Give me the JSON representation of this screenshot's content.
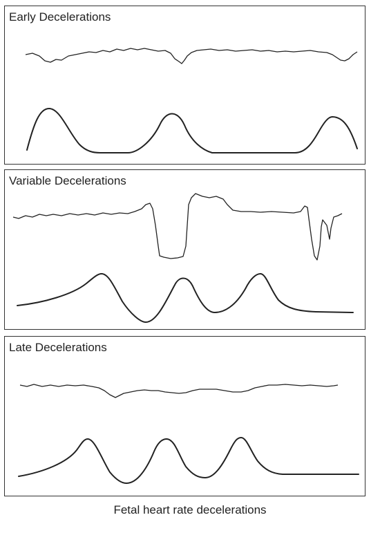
{
  "panels": [
    {
      "title": "Early Decelerations",
      "type": "early"
    },
    {
      "title": "Variable Decelerations",
      "type": "variable"
    },
    {
      "title": "Late Decelerations",
      "type": "late"
    }
  ],
  "caption": "Fetal heart rate decelerations"
}
